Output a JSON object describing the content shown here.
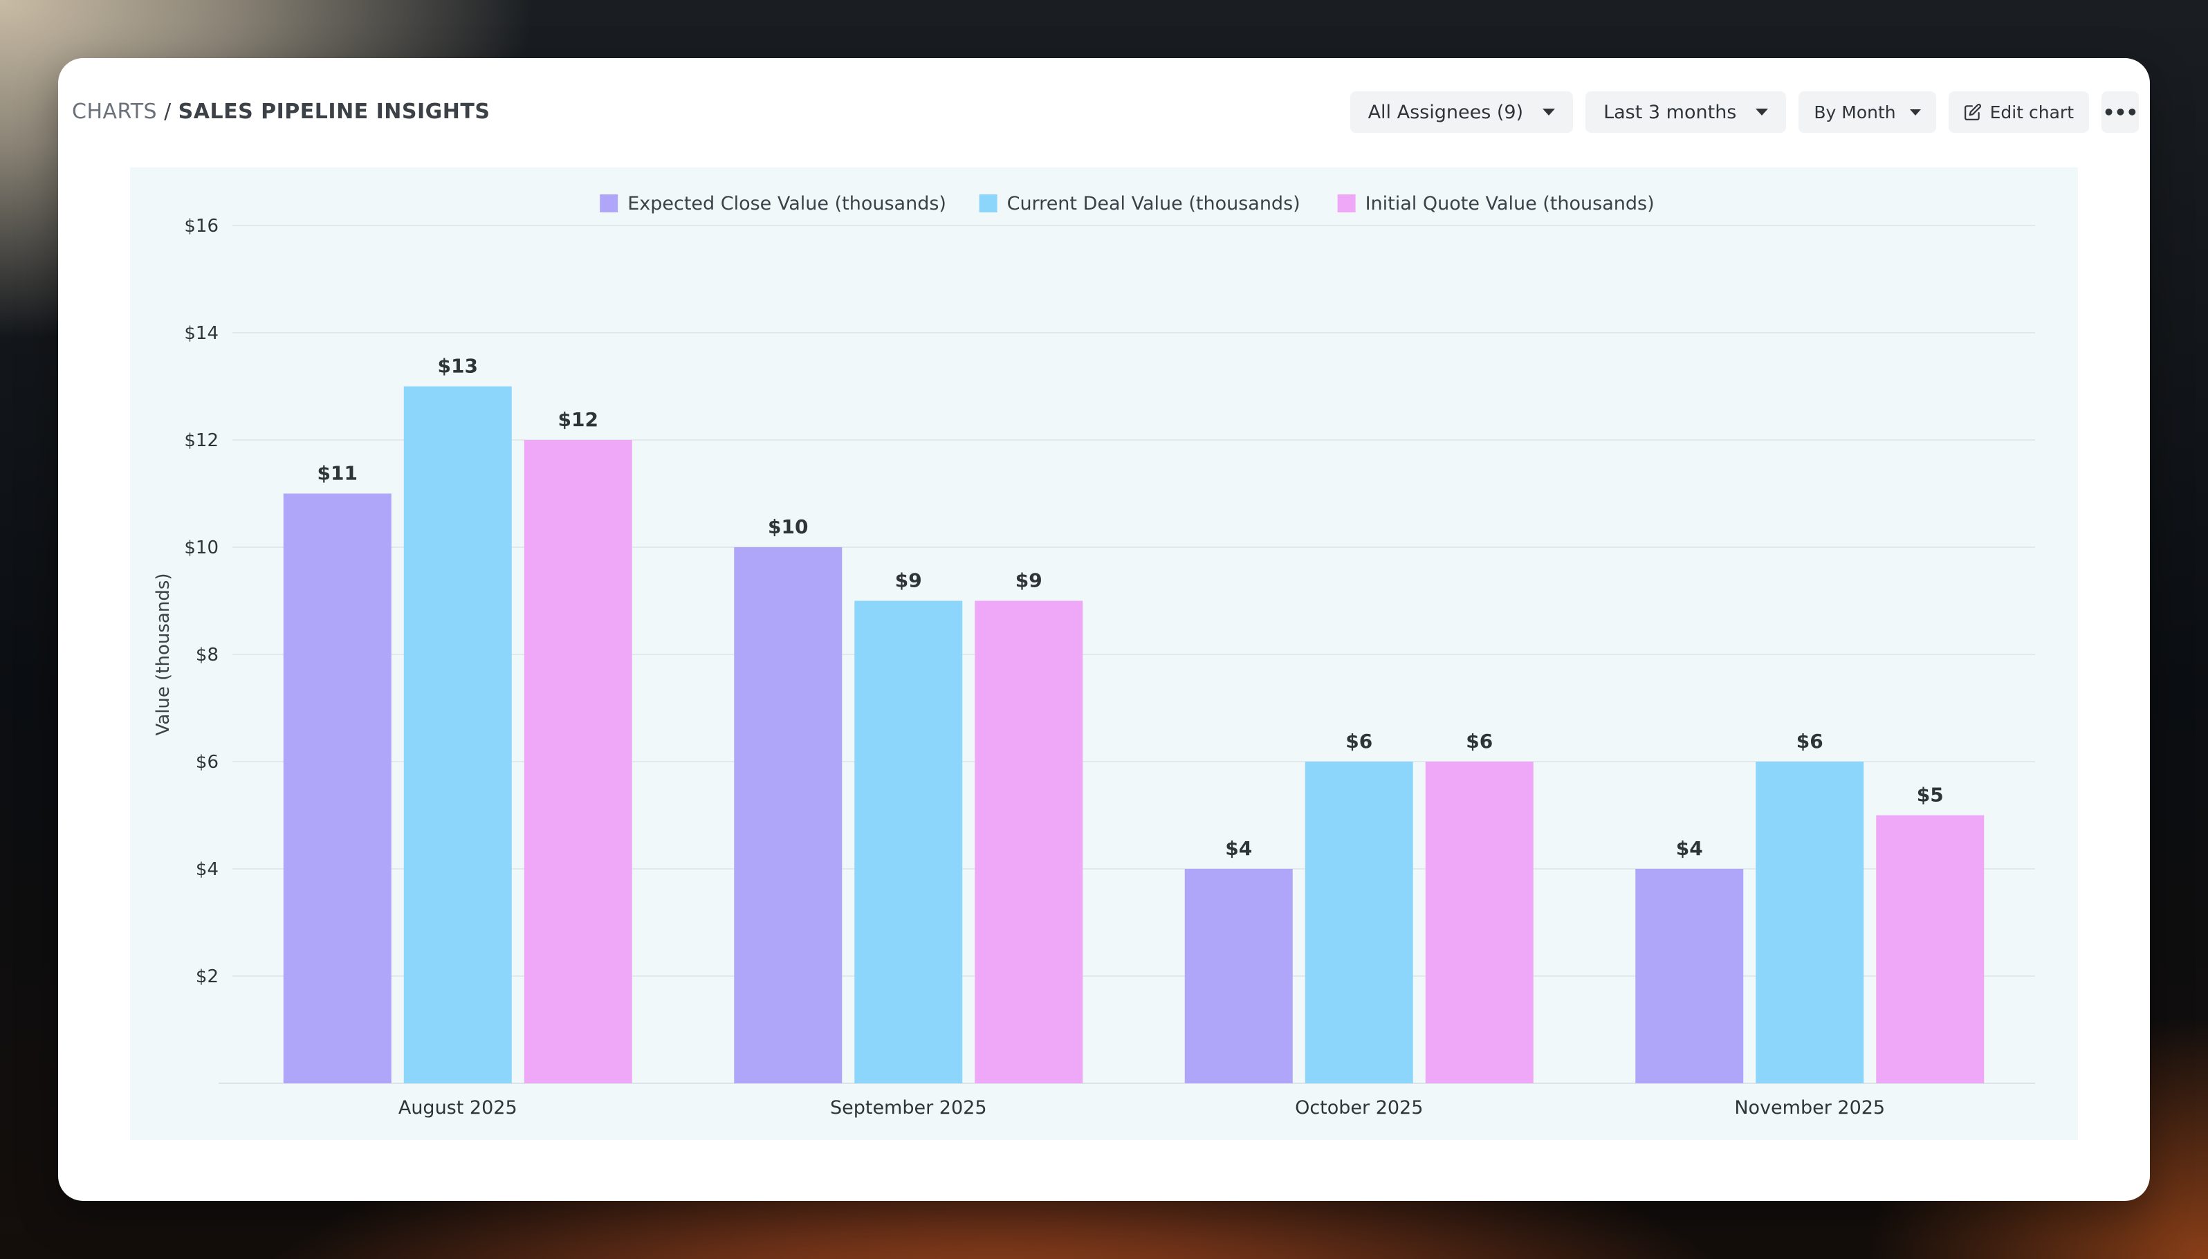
{
  "breadcrumb": {
    "root": "CHARTS",
    "separator": "/",
    "page": "SALES PIPELINE INSIGHTS"
  },
  "toolbar": {
    "assignees": "All Assignees (9)",
    "range": "Last 3 months",
    "grouping": "By Month",
    "edit": "Edit chart",
    "more": "•••"
  },
  "colors": {
    "series_1": "#afa6fa",
    "series_2": "#8dd6fb",
    "series_3": "#efa7f8"
  },
  "chart_data": {
    "type": "bar",
    "categories": [
      "August 2025",
      "September 2025",
      "October 2025",
      "November 2025"
    ],
    "series": [
      {
        "name": "Expected Close Value (thousands)",
        "values": [
          11,
          10,
          4,
          4
        ]
      },
      {
        "name": "Current Deal Value (thousands)",
        "values": [
          13,
          9,
          6,
          6
        ]
      },
      {
        "name": "Initial Quote Value (thousands)",
        "values": [
          12,
          9,
          6,
          5
        ]
      }
    ],
    "ylabel": "Value (thousands)",
    "ylim": [
      0,
      16
    ],
    "yticks": [
      "$2",
      "$4",
      "$6",
      "$8",
      "$10",
      "$12",
      "$14",
      "$16"
    ],
    "data_labels": [
      [
        "$11",
        "$10",
        "$4",
        "$4"
      ],
      [
        "$13",
        "$9",
        "$6",
        "$6"
      ],
      [
        "$12",
        "$9",
        "$6",
        "$5"
      ]
    ],
    "legend_position": "top",
    "grid": true
  }
}
